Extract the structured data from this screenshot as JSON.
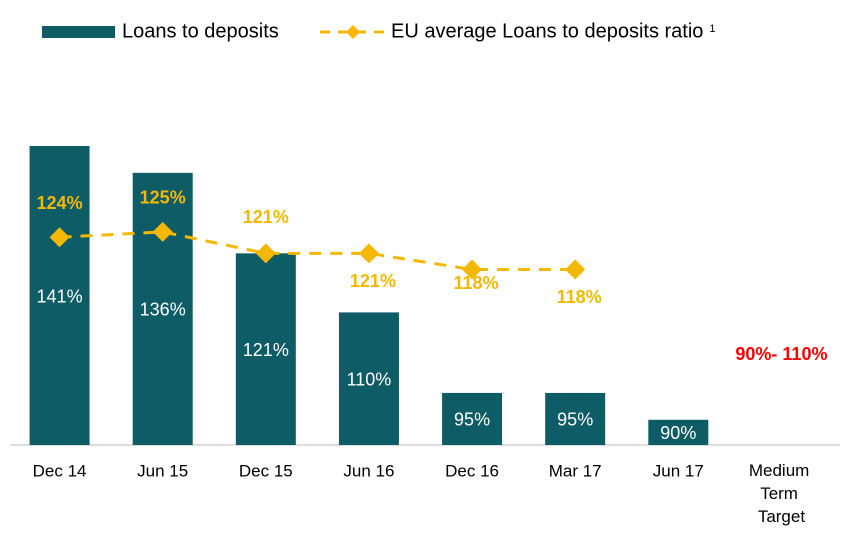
{
  "chart_data": {
    "type": "bar_line",
    "categories": [
      "Dec 14",
      "Jun 15",
      "Dec 15",
      "Jun 16",
      "Dec 16",
      "Mar 17",
      "Jun 17",
      "Medium Term Target"
    ],
    "series": [
      {
        "name": "Loans to deposits",
        "type": "bar",
        "color": "#0d5c66",
        "values": [
          141,
          136,
          121,
          110,
          95,
          95,
          90,
          null
        ],
        "value_labels": [
          "141%",
          "136%",
          "121%",
          "110%",
          "95%",
          "95%",
          "90%",
          null
        ]
      },
      {
        "name": "EU average Loans to deposits ratio",
        "type": "line",
        "color": "#f5b800",
        "values": [
          124,
          125,
          121,
          121,
          118,
          118,
          null,
          null
        ],
        "value_labels": [
          "124%",
          "125%",
          "121%",
          "121%",
          "118%",
          "118%",
          null,
          null
        ]
      }
    ],
    "legend_footnote": "1",
    "annotation": "90%- 110%",
    "annotation_color": "#ff0000",
    "ylim": [
      85.3,
      141
    ]
  }
}
